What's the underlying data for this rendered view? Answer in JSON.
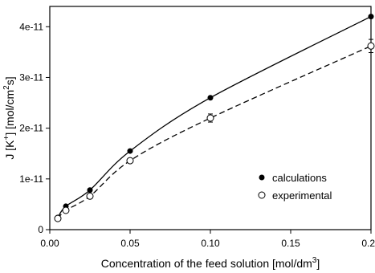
{
  "chart_data": {
    "type": "scatter",
    "title": "",
    "xlabel": "Concentration of the feed solution [mol/dm3]",
    "xlabel_parts": {
      "main": "Concentration of the feed solution [mol/dm",
      "sup": "3",
      "end": "]"
    },
    "ylabel": "J [K+] [mol/cm2s]",
    "ylabel_parts": {
      "a": "J  [K",
      "sup1": "+",
      "b": "]  [mol/cm",
      "sup2": "2",
      "c": "s]"
    },
    "xlim": [
      0,
      0.2
    ],
    "ylim": [
      0,
      4.4e-11
    ],
    "x_ticks": [
      0.0,
      0.05,
      0.1,
      0.15,
      0.2
    ],
    "x_tick_labels": [
      "0.00",
      "0.05",
      "0.10",
      "0.15",
      "0.20"
    ],
    "y_ticks": [
      0,
      1e-11,
      2e-11,
      3e-11,
      4e-11
    ],
    "y_tick_labels": [
      "0",
      "1e-11",
      "2e-11",
      "3e-11",
      "4e-11"
    ],
    "grid": false,
    "legend_position": "lower-right",
    "series": [
      {
        "name": "calculations",
        "marker": "filled-circle",
        "line": "solid",
        "x": [
          0.005,
          0.01,
          0.025,
          0.05,
          0.1,
          0.2
        ],
        "y": [
          2.4e-12,
          4.6e-12,
          7.8e-12,
          1.55e-11,
          2.6e-11,
          4.2e-11
        ]
      },
      {
        "name": "experimental",
        "marker": "open-circle",
        "line": "dashed",
        "x": [
          0.005,
          0.01,
          0.025,
          0.05,
          0.1,
          0.2
        ],
        "y": [
          2.2e-12,
          3.8e-12,
          6.6e-12,
          1.36e-11,
          2.2e-11,
          3.62e-11
        ],
        "error": [
          0,
          0,
          0,
          0,
          8e-13,
          1.3e-12
        ]
      }
    ]
  }
}
